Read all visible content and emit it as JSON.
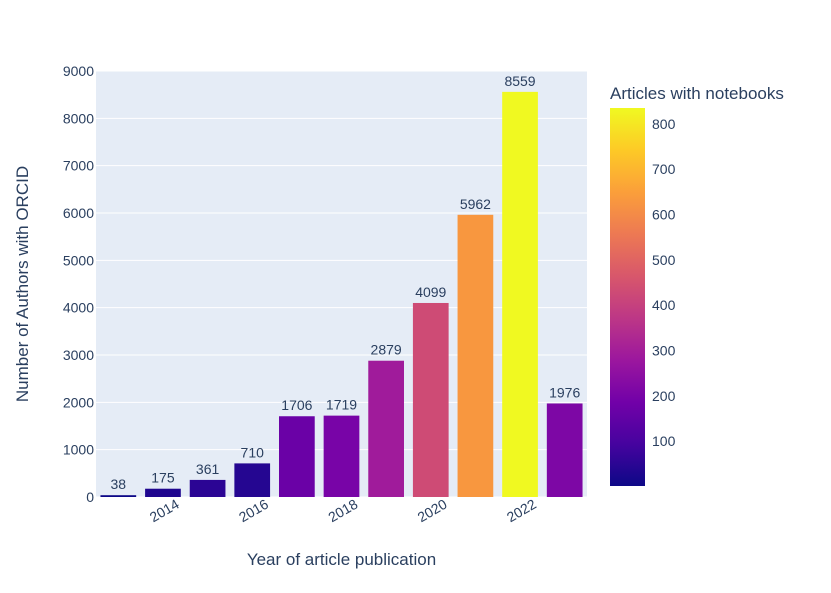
{
  "chart_data": {
    "type": "bar",
    "title": "",
    "xlabel": "Year of article publication",
    "ylabel": "Number of Authors with ORCID",
    "x": [
      2013,
      2014,
      2015,
      2016,
      2017,
      2018,
      2019,
      2020,
      2021,
      2022,
      2023
    ],
    "values": [
      38,
      175,
      361,
      710,
      1706,
      1719,
      2879,
      4099,
      5962,
      8559,
      1976
    ],
    "color_values": [
      1,
      30,
      50,
      40,
      170,
      200,
      290,
      430,
      630,
      835,
      210
    ],
    "ylim": [
      0,
      9000
    ],
    "yticks": [
      0,
      1000,
      2000,
      3000,
      4000,
      5000,
      6000,
      7000,
      8000,
      9000
    ],
    "xticks": [
      "2014",
      "2016",
      "2018",
      "2020",
      "2022"
    ],
    "xtick_values": [
      2014,
      2016,
      2018,
      2020,
      2022
    ],
    "grid": true,
    "colorbar": {
      "title": "Articles with notebooks",
      "range": [
        1,
        835
      ],
      "ticks": [
        100,
        200,
        300,
        400,
        500,
        600,
        700,
        800
      ],
      "colorscale": [
        "#0d0887",
        "#46039f",
        "#7201a8",
        "#9c179e",
        "#bd3786",
        "#d8576b",
        "#ed7953",
        "#fb9f3a",
        "#fdca26",
        "#f0f921"
      ]
    },
    "colors": {
      "plot_bg": "#e5ecf6",
      "grid": "#ffffff",
      "text": "#2a3f5f"
    }
  }
}
